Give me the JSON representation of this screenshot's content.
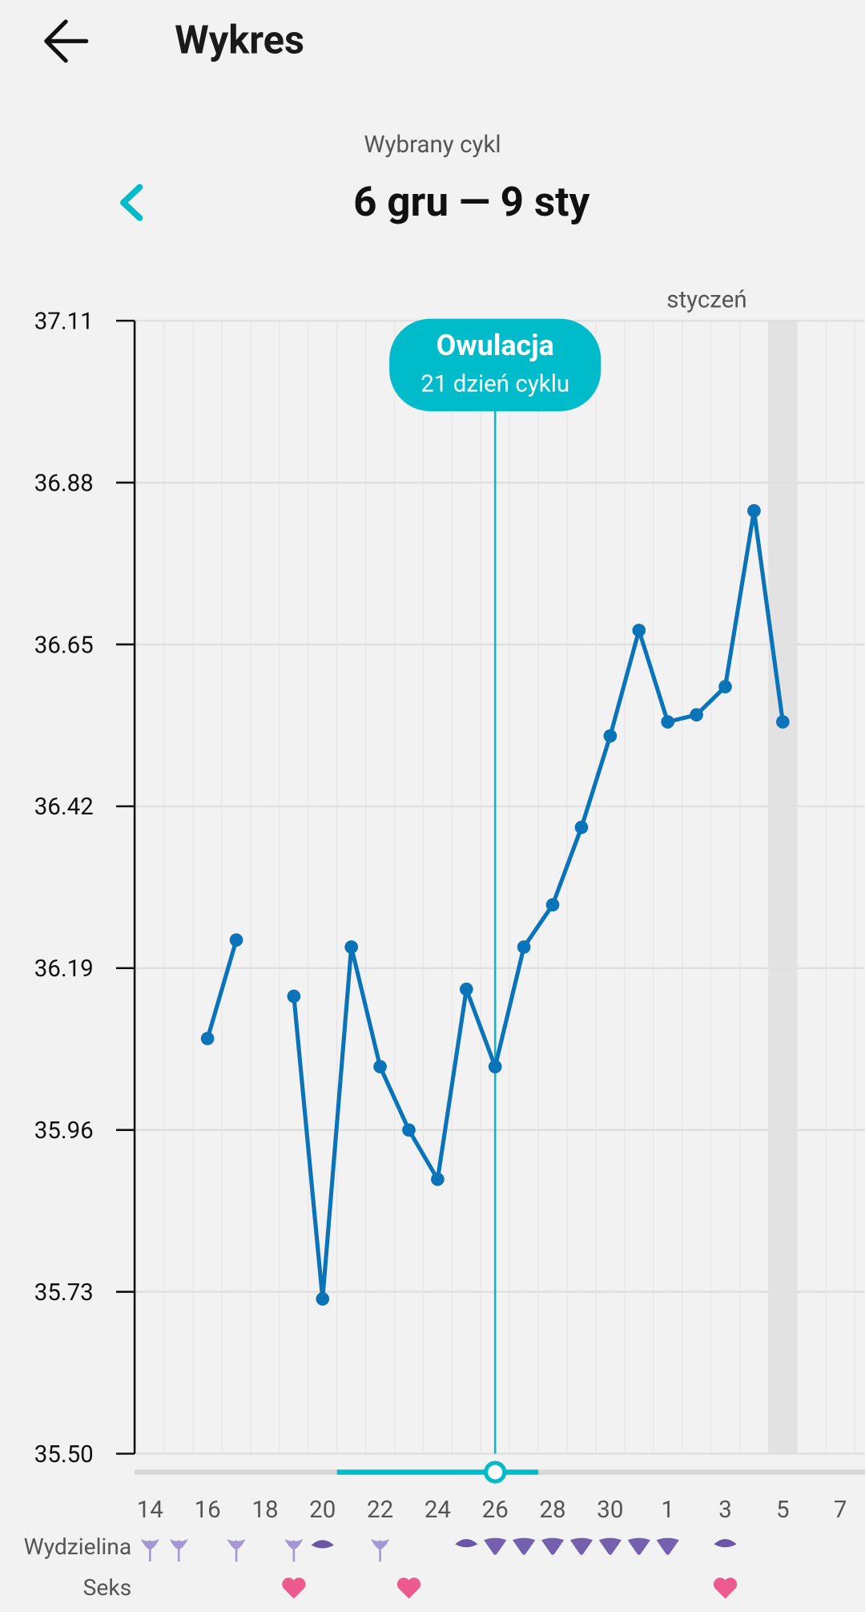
{
  "header": {
    "title": "Wykres"
  },
  "cycle": {
    "label": "Wybrany cykl",
    "range": "6 gru — 9 sty"
  },
  "chart_data": {
    "type": "line",
    "x_annotation": "styczeń",
    "categories": [
      "14",
      null,
      "16",
      null,
      "18",
      null,
      "20",
      null,
      "22",
      null,
      "24",
      null,
      "26",
      null,
      "28",
      null,
      "30",
      null,
      "1",
      null,
      "3",
      null,
      "5",
      null,
      "7"
    ],
    "values": [
      null,
      null,
      36.09,
      36.23,
      null,
      36.15,
      35.72,
      36.22,
      36.05,
      35.96,
      35.89,
      36.16,
      36.05,
      36.22,
      36.28,
      36.39,
      36.52,
      36.67,
      36.54,
      36.55,
      36.59,
      36.84,
      36.54,
      null,
      null
    ],
    "color": "#0b73b7",
    "ylim": [
      35.5,
      37.11
    ],
    "yticks": [
      {
        "value": 35.5,
        "label": "35.50"
      },
      35.73,
      35.96,
      36.19,
      36.42,
      36.65,
      36.88,
      37.11
    ],
    "grid": true,
    "annotation": {
      "title": "Owulacja",
      "subtitle": "21 dzień cyklu",
      "category": "26",
      "color": "#00bccb"
    }
  },
  "rows": {
    "discharge": "Wydzielina",
    "sex": "Seks"
  }
}
